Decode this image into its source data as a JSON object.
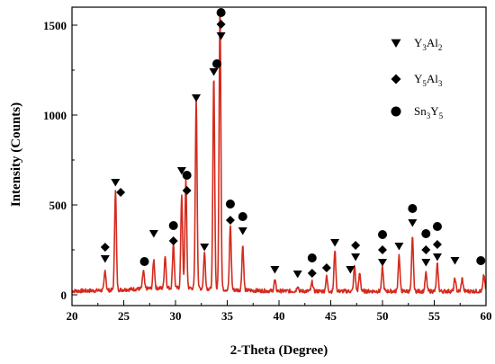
{
  "chart_data": {
    "type": "line",
    "title": "",
    "xlabel": "2-Theta (Degree)",
    "ylabel": "Intensity (Counts)",
    "xlim": [
      20,
      60
    ],
    "ylim": [
      -60,
      1600
    ],
    "xticks": [
      20,
      25,
      30,
      35,
      40,
      45,
      50,
      55,
      60
    ],
    "yticks": [
      0,
      500,
      1000,
      1500
    ],
    "grid": false,
    "line_color": "#d42b1e",
    "peaks": [
      {
        "x": 23.2,
        "y": 110
      },
      {
        "x": 24.2,
        "y": 560
      },
      {
        "x": 26.9,
        "y": 100
      },
      {
        "x": 27.9,
        "y": 160
      },
      {
        "x": 29.0,
        "y": 180
      },
      {
        "x": 29.8,
        "y": 250
      },
      {
        "x": 30.6,
        "y": 520
      },
      {
        "x": 31.0,
        "y": 600
      },
      {
        "x": 32.0,
        "y": 1050
      },
      {
        "x": 32.8,
        "y": 200
      },
      {
        "x": 33.7,
        "y": 1180
      },
      {
        "x": 34.3,
        "y": 1570
      },
      {
        "x": 35.3,
        "y": 360
      },
      {
        "x": 36.5,
        "y": 250
      },
      {
        "x": 39.6,
        "y": 60
      },
      {
        "x": 41.8,
        "y": 30
      },
      {
        "x": 43.2,
        "y": 50
      },
      {
        "x": 44.6,
        "y": 80
      },
      {
        "x": 45.4,
        "y": 230
      },
      {
        "x": 47.3,
        "y": 140
      },
      {
        "x": 47.8,
        "y": 100
      },
      {
        "x": 50.0,
        "y": 130
      },
      {
        "x": 51.6,
        "y": 200
      },
      {
        "x": 52.9,
        "y": 300
      },
      {
        "x": 54.2,
        "y": 100
      },
      {
        "x": 55.3,
        "y": 150
      },
      {
        "x": 57.0,
        "y": 70
      },
      {
        "x": 57.7,
        "y": 70
      },
      {
        "x": 59.8,
        "y": 90
      }
    ],
    "baseline": 20,
    "legend_position": "top-right",
    "legend": [
      {
        "symbol": "triangle-down",
        "label": "Y3Al2"
      },
      {
        "symbol": "diamond",
        "label": "Y5Al3"
      },
      {
        "symbol": "circle",
        "label": "Sn3Y5"
      }
    ],
    "markers": [
      {
        "x": 23.2,
        "y": 200,
        "symbol": "triangle-down"
      },
      {
        "x": 23.2,
        "y": 265,
        "symbol": "diamond"
      },
      {
        "x": 24.2,
        "y": 625,
        "symbol": "triangle-down"
      },
      {
        "x": 24.7,
        "y": 570,
        "symbol": "diamond"
      },
      {
        "x": 27.0,
        "y": 185,
        "symbol": "circle"
      },
      {
        "x": 27.9,
        "y": 340,
        "symbol": "triangle-down"
      },
      {
        "x": 29.8,
        "y": 300,
        "symbol": "diamond"
      },
      {
        "x": 29.8,
        "y": 385,
        "symbol": "circle"
      },
      {
        "x": 30.6,
        "y": 690,
        "symbol": "triangle-down"
      },
      {
        "x": 31.1,
        "y": 580,
        "symbol": "diamond"
      },
      {
        "x": 31.1,
        "y": 665,
        "symbol": "circle"
      },
      {
        "x": 32.0,
        "y": 1095,
        "symbol": "triangle-down"
      },
      {
        "x": 32.8,
        "y": 265,
        "symbol": "triangle-down"
      },
      {
        "x": 33.7,
        "y": 1240,
        "symbol": "triangle-down"
      },
      {
        "x": 34.0,
        "y": 1285,
        "symbol": "circle"
      },
      {
        "x": 34.4,
        "y": 1440,
        "symbol": "triangle-down"
      },
      {
        "x": 34.4,
        "y": 1505,
        "symbol": "diamond"
      },
      {
        "x": 34.4,
        "y": 1570,
        "symbol": "circle"
      },
      {
        "x": 35.3,
        "y": 415,
        "symbol": "diamond"
      },
      {
        "x": 35.3,
        "y": 505,
        "symbol": "circle"
      },
      {
        "x": 36.5,
        "y": 355,
        "symbol": "triangle-down"
      },
      {
        "x": 36.5,
        "y": 435,
        "symbol": "circle"
      },
      {
        "x": 39.6,
        "y": 140,
        "symbol": "triangle-down"
      },
      {
        "x": 41.8,
        "y": 115,
        "symbol": "triangle-down"
      },
      {
        "x": 43.2,
        "y": 120,
        "symbol": "diamond"
      },
      {
        "x": 43.2,
        "y": 205,
        "symbol": "circle"
      },
      {
        "x": 44.6,
        "y": 150,
        "symbol": "diamond"
      },
      {
        "x": 45.4,
        "y": 290,
        "symbol": "triangle-down"
      },
      {
        "x": 46.9,
        "y": 140,
        "symbol": "triangle-down"
      },
      {
        "x": 47.4,
        "y": 210,
        "symbol": "triangle-down"
      },
      {
        "x": 47.4,
        "y": 275,
        "symbol": "diamond"
      },
      {
        "x": 50.0,
        "y": 180,
        "symbol": "triangle-down"
      },
      {
        "x": 50.0,
        "y": 250,
        "symbol": "diamond"
      },
      {
        "x": 50.0,
        "y": 335,
        "symbol": "circle"
      },
      {
        "x": 51.6,
        "y": 270,
        "symbol": "triangle-down"
      },
      {
        "x": 52.9,
        "y": 400,
        "symbol": "triangle-down"
      },
      {
        "x": 52.9,
        "y": 480,
        "symbol": "circle"
      },
      {
        "x": 54.2,
        "y": 180,
        "symbol": "triangle-down"
      },
      {
        "x": 54.2,
        "y": 250,
        "symbol": "diamond"
      },
      {
        "x": 54.2,
        "y": 340,
        "symbol": "circle"
      },
      {
        "x": 55.3,
        "y": 210,
        "symbol": "triangle-down"
      },
      {
        "x": 55.3,
        "y": 280,
        "symbol": "diamond"
      },
      {
        "x": 55.3,
        "y": 380,
        "symbol": "circle"
      },
      {
        "x": 57.0,
        "y": 190,
        "symbol": "triangle-down"
      },
      {
        "x": 59.5,
        "y": 190,
        "symbol": "circle"
      }
    ]
  }
}
